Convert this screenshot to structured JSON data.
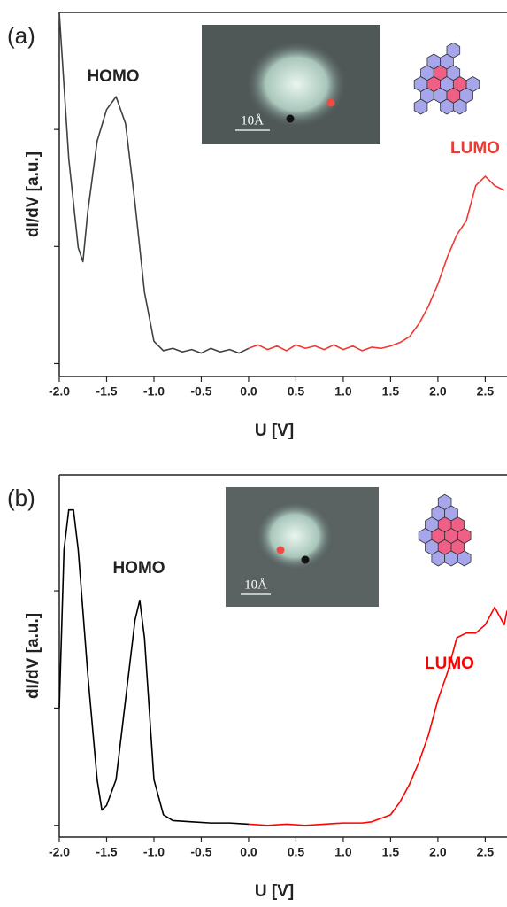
{
  "chart_data": [
    {
      "type": "line",
      "panel_label": "(a)",
      "xlabel": "U [V]",
      "ylabel": "dI/dV [a.u.]",
      "x": [
        -2.0,
        -1.9,
        -1.8,
        -1.75,
        -1.7,
        -1.6,
        -1.5,
        -1.4,
        -1.3,
        -1.2,
        -1.1,
        -1.0,
        -0.9,
        -0.8,
        -0.7,
        -0.6,
        -0.5,
        -0.4,
        -0.3,
        -0.2,
        -0.1,
        0.0,
        0.1,
        0.2,
        0.3,
        0.4,
        0.5,
        0.6,
        0.7,
        0.8,
        0.9,
        1.0,
        1.1,
        1.2,
        1.3,
        1.4,
        1.5,
        1.6,
        1.7,
        1.8,
        1.9,
        2.0,
        2.1,
        2.2,
        2.3,
        2.4,
        2.5,
        2.6,
        2.7
      ],
      "series": [
        {
          "color": "#3d4242",
          "values": [
            3.0,
            1.75,
            0.99,
            0.87,
            1.29,
            1.9,
            2.17,
            2.28,
            2.05,
            1.37,
            0.61,
            0.19,
            0.11,
            0.13,
            0.1,
            0.12,
            0.09,
            0.13,
            0.1,
            0.12,
            0.09,
            0.13,
            null,
            null,
            null,
            null,
            null,
            null,
            null,
            null,
            null,
            null,
            null,
            null,
            null,
            null,
            null,
            null,
            null,
            null,
            null,
            null,
            null,
            null,
            null,
            null,
            null,
            null,
            null
          ]
        },
        {
          "color": "#ee3a33",
          "values": [
            null,
            null,
            null,
            null,
            null,
            null,
            null,
            null,
            null,
            null,
            null,
            null,
            null,
            null,
            null,
            null,
            null,
            null,
            null,
            null,
            null,
            0.13,
            0.16,
            0.12,
            0.15,
            0.11,
            0.16,
            0.13,
            0.15,
            0.12,
            0.16,
            0.12,
            0.15,
            0.11,
            0.14,
            0.13,
            0.15,
            0.18,
            0.23,
            0.34,
            0.49,
            0.68,
            0.91,
            1.1,
            1.22,
            1.52,
            1.6,
            1.52,
            1.48
          ]
        }
      ],
      "xlim": [
        -2.0,
        2.73
      ],
      "ylim": [
        -0.11,
        3.0
      ],
      "xticks": [
        {
          "value": -2.0,
          "label": "-2.0"
        },
        -1.5,
        {
          "value": -1.0,
          "label": "-1.0"
        },
        -0.5,
        {
          "value": 0.0,
          "label": "0.0"
        },
        0.5,
        {
          "value": 1.0,
          "label": "1.0"
        },
        1.5,
        {
          "value": 2.0,
          "label": "2.0"
        },
        2.5
      ],
      "yticks": [
        0,
        1,
        2
      ],
      "annotations": [
        {
          "text": "HOMO",
          "color": "#222222"
        },
        {
          "text": "LUMO",
          "color": "#ee3a33"
        }
      ],
      "inset_scale": "10Å"
    },
    {
      "type": "line",
      "panel_label": "(b)",
      "xlabel": "U [V]",
      "ylabel": "dI/dV [a.u.]",
      "x": [
        -2.0,
        -1.95,
        -1.9,
        -1.85,
        -1.8,
        -1.7,
        -1.6,
        -1.55,
        -1.5,
        -1.4,
        -1.3,
        -1.2,
        -1.15,
        -1.1,
        -1.0,
        -0.9,
        -0.8,
        -0.6,
        -0.4,
        -0.2,
        0.0,
        0.2,
        0.4,
        0.6,
        0.8,
        1.0,
        1.2,
        1.3,
        1.4,
        1.5,
        1.6,
        1.7,
        1.8,
        1.9,
        2.0,
        2.1,
        2.2,
        2.3,
        2.4,
        2.5,
        2.6,
        2.7,
        2.73
      ],
      "series": [
        {
          "color": "#000000",
          "values": [
            1.0,
            2.35,
            2.69,
            2.69,
            2.35,
            1.3,
            0.39,
            0.13,
            0.17,
            0.39,
            1.07,
            1.75,
            1.92,
            1.6,
            0.39,
            0.09,
            0.04,
            0.03,
            0.02,
            0.02,
            0.01,
            null,
            null,
            null,
            null,
            null,
            null,
            null,
            null,
            null,
            null,
            null,
            null,
            null,
            null,
            null,
            null,
            null,
            null,
            null,
            null,
            null,
            null
          ]
        },
        {
          "color": "#ff0000",
          "values": [
            null,
            null,
            null,
            null,
            null,
            null,
            null,
            null,
            null,
            null,
            null,
            null,
            null,
            null,
            null,
            null,
            null,
            null,
            null,
            null,
            0.01,
            0.0,
            0.01,
            0.0,
            0.01,
            0.02,
            0.02,
            0.03,
            0.06,
            0.09,
            0.2,
            0.35,
            0.54,
            0.77,
            1.07,
            1.3,
            1.6,
            1.64,
            1.64,
            1.71,
            1.86,
            1.71,
            1.83
          ]
        }
      ],
      "xlim": [
        -2.0,
        2.73
      ],
      "ylim": [
        -0.1,
        2.99
      ],
      "xticks": [
        {
          "value": -2.0,
          "label": "-2.0"
        },
        -1.5,
        {
          "value": -1.0,
          "label": "-1.0"
        },
        -0.5,
        {
          "value": 0.0,
          "label": "0.0"
        },
        0.5,
        {
          "value": 1.0,
          "label": "1.0"
        },
        1.5,
        {
          "value": 2.0,
          "label": "2.0"
        },
        2.5
      ],
      "yticks": [
        0,
        1,
        2
      ],
      "annotations": [
        {
          "text": "HOMO",
          "color": "#222222"
        },
        {
          "text": "LUMO",
          "color": "#ff0000"
        }
      ],
      "inset_scale": "10Å"
    }
  ]
}
